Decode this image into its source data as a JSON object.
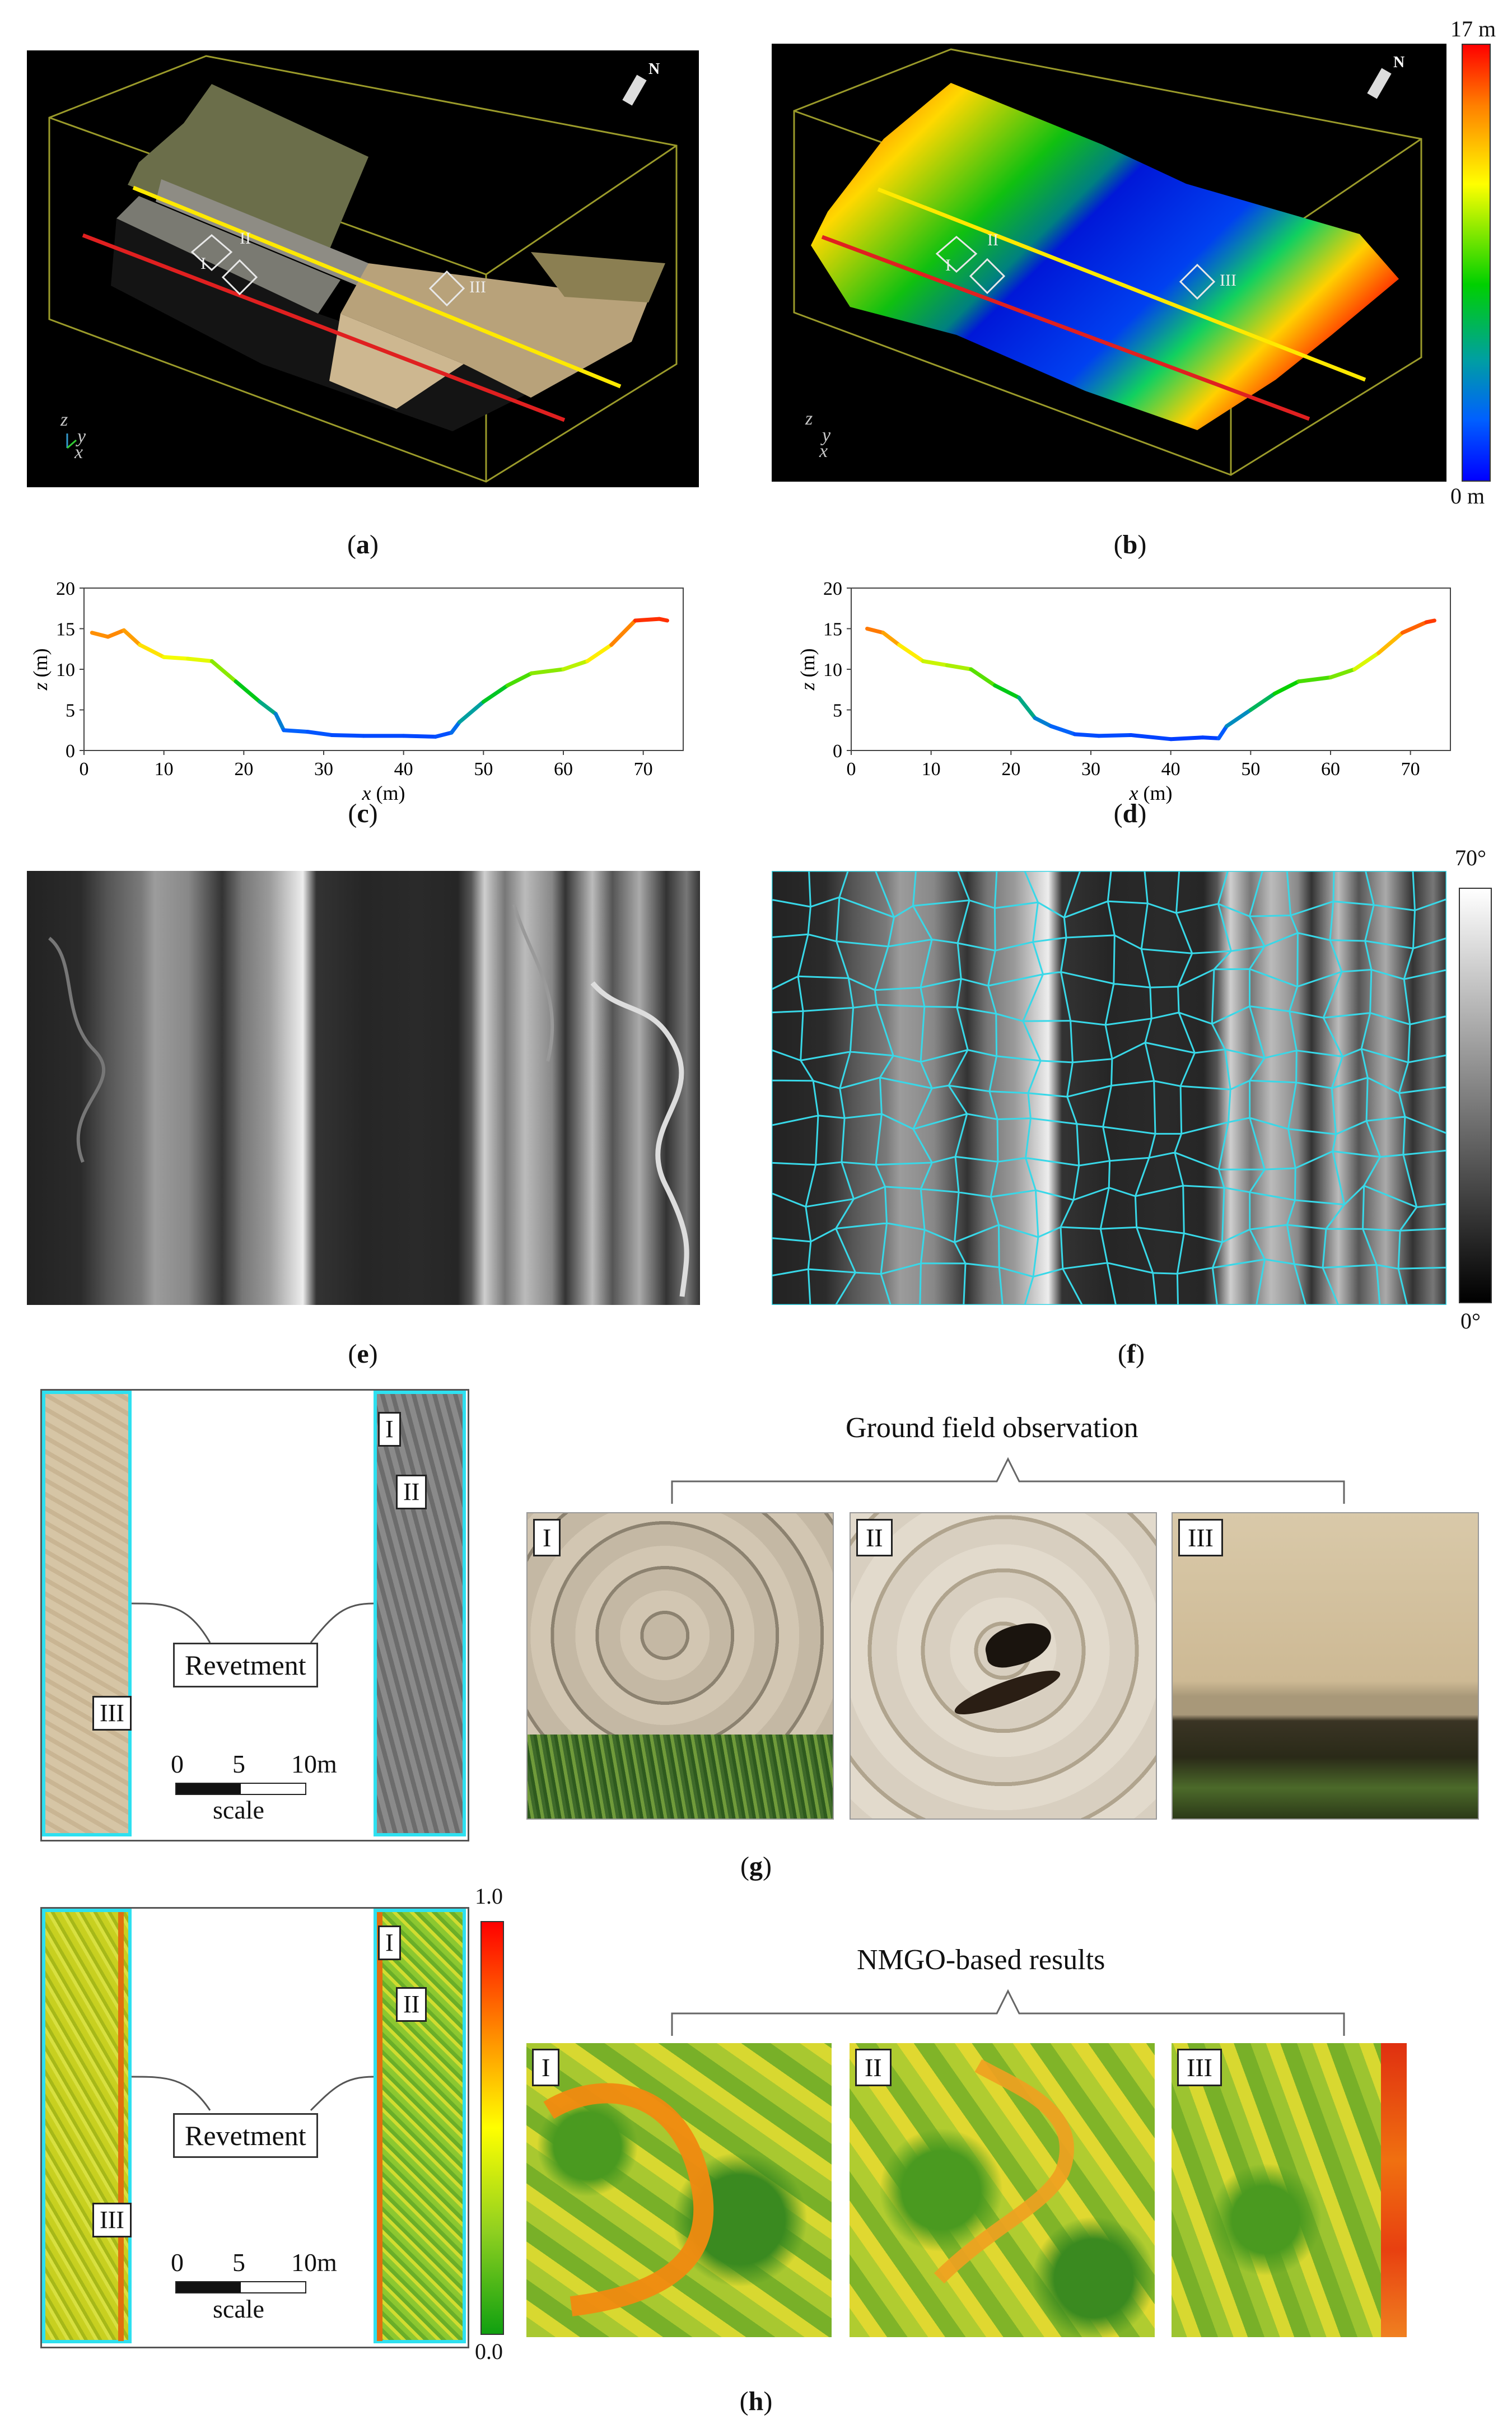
{
  "panels": {
    "a": {
      "label_open": "(",
      "letter": "a",
      "label_close": ")"
    },
    "b": {
      "label_open": "(",
      "letter": "b",
      "label_close": ")"
    },
    "c": {
      "label_open": "(",
      "letter": "c",
      "label_close": ")"
    },
    "d": {
      "label_open": "(",
      "letter": "d",
      "label_close": ")"
    },
    "e": {
      "label_open": "(",
      "letter": "e",
      "label_close": ")"
    },
    "f": {
      "label_open": "(",
      "letter": "f",
      "label_close": ")"
    },
    "g": {
      "label_open": "(",
      "letter": "g",
      "label_close": ")"
    },
    "h": {
      "label_open": "(",
      "letter": "h",
      "label_close": ")"
    }
  },
  "point_cloud": {
    "north_label": "N",
    "axis_z": "z",
    "axis_y": "y",
    "axis_x": "x",
    "roman": [
      "I",
      "II",
      "III"
    ],
    "elevation_colorbar": {
      "max_label": "17 m",
      "min_label": "0 m"
    }
  },
  "profile": {
    "xlabel_italic": "x",
    "xlabel_unit": " (m)",
    "ylabel_italic": "z",
    "ylabel_unit": " (m)",
    "xticks": [
      "0",
      "10",
      "20",
      "30",
      "40",
      "50",
      "60",
      "70"
    ],
    "yticks": [
      "0",
      "5",
      "10",
      "15",
      "20"
    ]
  },
  "slope_colorbar": {
    "max_label": "70°",
    "min_label": "0°"
  },
  "field": {
    "title": "Ground field observation",
    "revetment_label": "Revetment",
    "scale_ticks": [
      "0",
      "5",
      "10m"
    ],
    "scale_word": "scale",
    "roman": [
      "I",
      "II",
      "III"
    ]
  },
  "nmgo": {
    "title": "NMGO-based results",
    "revetment_label": "Revetment",
    "scale_ticks": [
      "0",
      "5",
      "10m"
    ],
    "scale_word": "scale",
    "roman": [
      "I",
      "II",
      "III"
    ],
    "colorbar": {
      "max_label": "1.0",
      "min_label": "0.0"
    }
  },
  "chart_data": [
    {
      "type": "line",
      "panel": "c",
      "xlabel": "x (m)",
      "ylabel": "z (m)",
      "xlim": [
        0,
        75
      ],
      "ylim": [
        0,
        20
      ],
      "x": [
        1,
        3,
        5,
        7,
        10,
        13,
        16,
        19,
        22,
        24,
        25,
        28,
        31,
        35,
        40,
        44,
        46,
        47,
        50,
        53,
        56,
        60,
        63,
        66,
        69,
        72,
        73
      ],
      "y": [
        14.5,
        14,
        14.8,
        13,
        11.5,
        11.3,
        11,
        8.5,
        6,
        4.5,
        2.5,
        2.3,
        1.9,
        1.8,
        1.8,
        1.7,
        2.2,
        3.5,
        6,
        8,
        9.5,
        10,
        11,
        13,
        16,
        16.2,
        16
      ],
      "color_scale": "elevation 0-17 m"
    },
    {
      "type": "line",
      "panel": "d",
      "xlabel": "x (m)",
      "ylabel": "z (m)",
      "xlim": [
        0,
        75
      ],
      "ylim": [
        0,
        20
      ],
      "x": [
        2,
        4,
        6,
        9,
        12,
        15,
        18,
        21,
        23,
        25,
        28,
        31,
        35,
        40,
        44,
        46,
        47,
        50,
        53,
        56,
        60,
        63,
        66,
        69,
        72,
        73
      ],
      "y": [
        15,
        14.5,
        13,
        11,
        10.5,
        10,
        8,
        6.5,
        4,
        3,
        2,
        1.8,
        1.9,
        1.4,
        1.6,
        1.5,
        3,
        5,
        7,
        8.5,
        9,
        10,
        12,
        14.5,
        15.8,
        16
      ],
      "color_scale": "elevation 0-17 m"
    }
  ]
}
